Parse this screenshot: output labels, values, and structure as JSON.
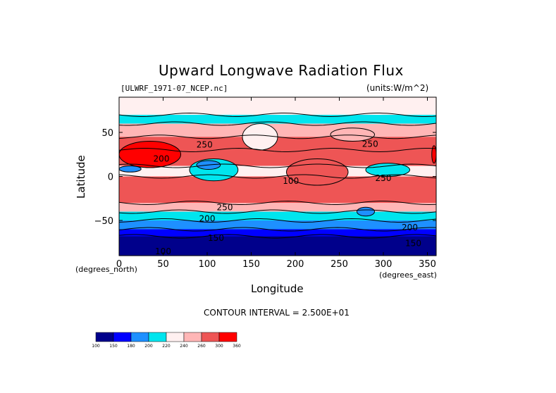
{
  "chart_data": {
    "type": "heatmap",
    "title": "Upward Longwave Radiation Flux",
    "file_label": "[ULWRF_1971-07_NCEP.nc]",
    "units_label": "(units:W/m^2)",
    "xlabel": "Longitude",
    "ylabel": "Latitude",
    "x_units_label": "(degrees_east)",
    "y_units_label": "(degrees_north)",
    "xlim": [
      0,
      360
    ],
    "ylim": [
      -90,
      90
    ],
    "x_ticks": [
      0,
      50,
      100,
      150,
      200,
      250,
      300,
      350
    ],
    "y_ticks": [
      -50,
      0,
      50
    ],
    "contour_interval_label": "CONTOUR INTERVAL = 2.500E+01",
    "contour_labels": [
      {
        "text": "250",
        "x": 97,
        "y": 36
      },
      {
        "text": "200",
        "x": 48,
        "y": 20
      },
      {
        "text": "100",
        "x": 195,
        "y": -5
      },
      {
        "text": "250",
        "x": 285,
        "y": 37
      },
      {
        "text": "250",
        "x": 300,
        "y": -2
      },
      {
        "text": "250",
        "x": 120,
        "y": -35
      },
      {
        "text": "200",
        "x": 100,
        "y": -48
      },
      {
        "text": "150",
        "x": 110,
        "y": -70
      },
      {
        "text": "100",
        "x": 50,
        "y": -85
      },
      {
        "text": "200",
        "x": 330,
        "y": -58
      },
      {
        "text": "150",
        "x": 334,
        "y": -76
      }
    ],
    "colorbar": {
      "ticks": [
        100,
        150,
        180,
        200,
        220,
        240,
        260,
        300,
        360
      ],
      "colors": [
        "#00008b",
        "#0000ff",
        "#1e90ff",
        "#00e5ee",
        "#fff0f0",
        "#ffb6b6",
        "#ee5555",
        "#ff0000"
      ]
    },
    "zonal_bands": [
      {
        "lat_min": 70,
        "lat_max": 90,
        "level": 4
      },
      {
        "lat_min": 60,
        "lat_max": 70,
        "level": 3
      },
      {
        "lat_min": 45,
        "lat_max": 60,
        "level": 5
      },
      {
        "lat_min": 30,
        "lat_max": 45,
        "level": 6
      },
      {
        "lat_min": 12,
        "lat_max": 30,
        "level": 6
      },
      {
        "lat_min": 0,
        "lat_max": 12,
        "level": 4
      },
      {
        "lat_min": -30,
        "lat_max": 0,
        "level": 6
      },
      {
        "lat_min": -40,
        "lat_max": -30,
        "level": 5
      },
      {
        "lat_min": -50,
        "lat_max": -40,
        "level": 3
      },
      {
        "lat_min": -60,
        "lat_max": -50,
        "level": 2
      },
      {
        "lat_min": -68,
        "lat_max": -60,
        "level": 1
      },
      {
        "lat_min": -90,
        "lat_max": -68,
        "level": 0
      }
    ],
    "regions": [
      {
        "x": [
          0,
          70
        ],
        "y": [
          10,
          40
        ],
        "level": 7
      },
      {
        "x": [
          355,
          360
        ],
        "y": [
          15,
          35
        ],
        "level": 7
      },
      {
        "x": [
          80,
          135
        ],
        "y": [
          -5,
          20
        ],
        "level": 3
      },
      {
        "x": [
          88,
          115
        ],
        "y": [
          8,
          18
        ],
        "level": 2
      },
      {
        "x": [
          140,
          180
        ],
        "y": [
          30,
          60
        ],
        "level": 4
      },
      {
        "x": [
          280,
          330
        ],
        "y": [
          0,
          15
        ],
        "level": 3
      },
      {
        "x": [
          0,
          25
        ],
        "y": [
          5,
          12
        ],
        "level": 2
      },
      {
        "x": [
          190,
          260
        ],
        "y": [
          -10,
          20
        ],
        "level": 6
      },
      {
        "x": [
          240,
          290
        ],
        "y": [
          40,
          55
        ],
        "level": 5
      },
      {
        "x": [
          270,
          290
        ],
        "y": [
          -45,
          -35
        ],
        "level": 2
      }
    ]
  }
}
